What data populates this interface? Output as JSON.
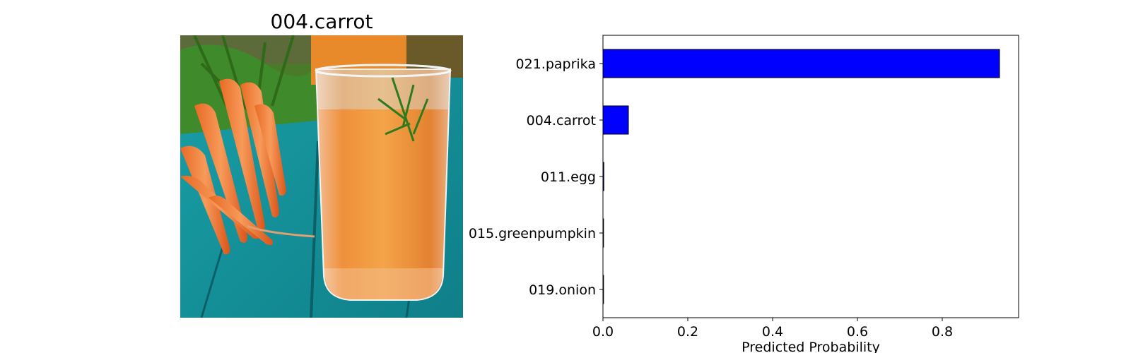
{
  "image_panel": {
    "title": "004.carrot"
  },
  "chart_data": {
    "type": "bar",
    "orientation": "horizontal",
    "categories": [
      "021.paprika",
      "004.carrot",
      "011.egg",
      "015.greenpumpkin",
      "019.onion"
    ],
    "values": [
      0.935,
      0.06,
      0.002,
      0.0005,
      0.0003
    ],
    "xlabel": "Predicted Probability",
    "ylabel": "",
    "xlim": [
      0,
      0.98
    ],
    "xticks": [
      0.0,
      0.2,
      0.4,
      0.6,
      0.8
    ],
    "xtick_labels": [
      "0.0",
      "0.2",
      "0.4",
      "0.6",
      "0.8"
    ],
    "grid": false,
    "legend": "none",
    "bar_color": "#0000ff",
    "bar_edge_color": "#000000"
  }
}
